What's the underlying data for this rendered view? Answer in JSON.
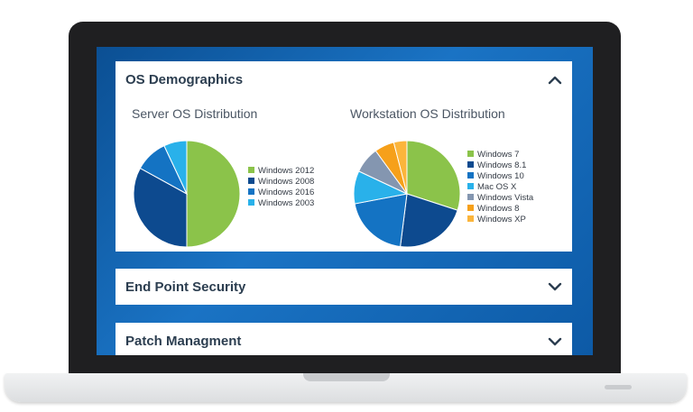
{
  "panels": [
    {
      "title": "OS Demographics",
      "state": "expanded",
      "icon": "chevron-up-icon"
    },
    {
      "title": "End Point Security",
      "state": "collapsed",
      "icon": "chevron-down-icon"
    },
    {
      "title": "Patch Managment",
      "state": "collapsed",
      "icon": "chevron-down-icon"
    }
  ],
  "chart_data": [
    {
      "type": "pie",
      "title": "Server OS Distribution",
      "categories": [
        "Windows 2012",
        "Windows 2008",
        "Windows 2016",
        "Windows 2003"
      ],
      "values": [
        50,
        33,
        10,
        7
      ],
      "colors": [
        "#8bc34a",
        "#0d4a8f",
        "#1473c3",
        "#29b1ea"
      ],
      "legend_placement": "right"
    },
    {
      "type": "pie",
      "title": "Workstation OS Distribution",
      "categories": [
        "Windows 7",
        "Windows 8.1",
        "Windows 10",
        "Mac OS X",
        "Windows Vista",
        "Windows 8",
        "Windows XP"
      ],
      "values": [
        30,
        22,
        20,
        10,
        8,
        6,
        4
      ],
      "colors": [
        "#8bc34a",
        "#0d4a8f",
        "#1473c3",
        "#29b1ea",
        "#8496b0",
        "#f6a01a",
        "#fbb53c"
      ],
      "legend_placement": "right"
    }
  ]
}
